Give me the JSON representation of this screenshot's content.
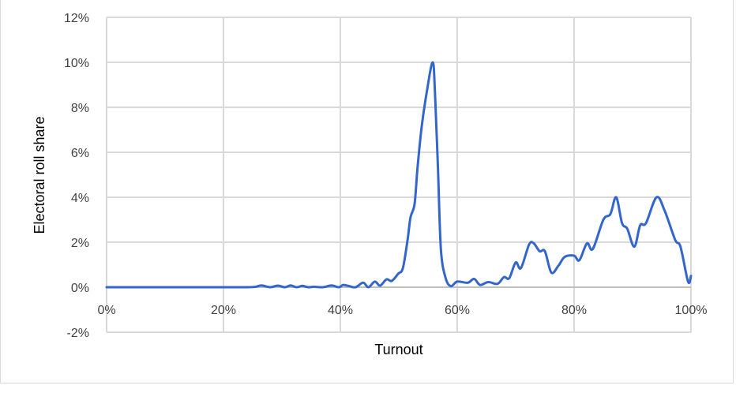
{
  "chart_data": {
    "type": "line",
    "title": "",
    "xlabel": "Turnout",
    "ylabel": "Electoral roll share",
    "xlim": [
      0,
      100
    ],
    "ylim": [
      -2,
      12
    ],
    "x_ticks": [
      "0%",
      "20%",
      "40%",
      "60%",
      "80%",
      "100%"
    ],
    "x_tick_values": [
      0,
      20,
      40,
      60,
      80,
      100
    ],
    "y_ticks": [
      "-2%",
      "0%",
      "2%",
      "4%",
      "6%",
      "8%",
      "10%",
      "12%"
    ],
    "y_tick_values": [
      -2,
      0,
      2,
      4,
      6,
      8,
      10,
      12
    ],
    "grid": true,
    "legend": "none",
    "line_color": "#3366cc",
    "series": [
      {
        "x": [
          0,
          10,
          20,
          24,
          25.5,
          26.5,
          28,
          29.3,
          30.5,
          31.5,
          32.5,
          33.5,
          34.5,
          35.5,
          37,
          38.5,
          39.7,
          40.5,
          41.5,
          42.6,
          43.9,
          44.8,
          45.9,
          46.8,
          47.9,
          48.8,
          49.9,
          50.7,
          51.5,
          52.0,
          52.7,
          53.2,
          53.9,
          54.8,
          55.8,
          56.2,
          56.7,
          57.2,
          58.0,
          58.9,
          60.0,
          61.8,
          62.9,
          63.9,
          65.3,
          66.9,
          68.0,
          68.9,
          70.0,
          70.9,
          72.3,
          73.1,
          74.1,
          75.0,
          76.1,
          77.3,
          78.4,
          80.0,
          80.9,
          82.2,
          83.2,
          85.0,
          86.2,
          87.2,
          88.2,
          89.1,
          90.3,
          91.3,
          92.3,
          94.1,
          95.5,
          97.3,
          98.2,
          99.5,
          100
        ],
        "y": [
          0,
          0,
          0,
          0,
          0.02,
          0.08,
          0,
          0.07,
          0,
          0.08,
          0,
          0.06,
          0,
          0.02,
          0,
          0.08,
          0,
          0.1,
          0.05,
          0,
          0.2,
          0,
          0.25,
          0.07,
          0.35,
          0.28,
          0.6,
          0.85,
          2.1,
          3.1,
          3.7,
          5.3,
          7.1,
          8.7,
          10.0,
          8.6,
          5.3,
          1.7,
          0.42,
          0.05,
          0.25,
          0.2,
          0.37,
          0.1,
          0.23,
          0.15,
          0.45,
          0.4,
          1.1,
          0.85,
          1.9,
          1.95,
          1.6,
          1.6,
          0.65,
          0.95,
          1.35,
          1.4,
          1.2,
          1.95,
          1.7,
          3.0,
          3.25,
          4.0,
          2.85,
          2.6,
          1.8,
          2.75,
          2.85,
          4.0,
          3.4,
          2.1,
          1.8,
          0.25,
          0.5
        ]
      }
    ]
  }
}
